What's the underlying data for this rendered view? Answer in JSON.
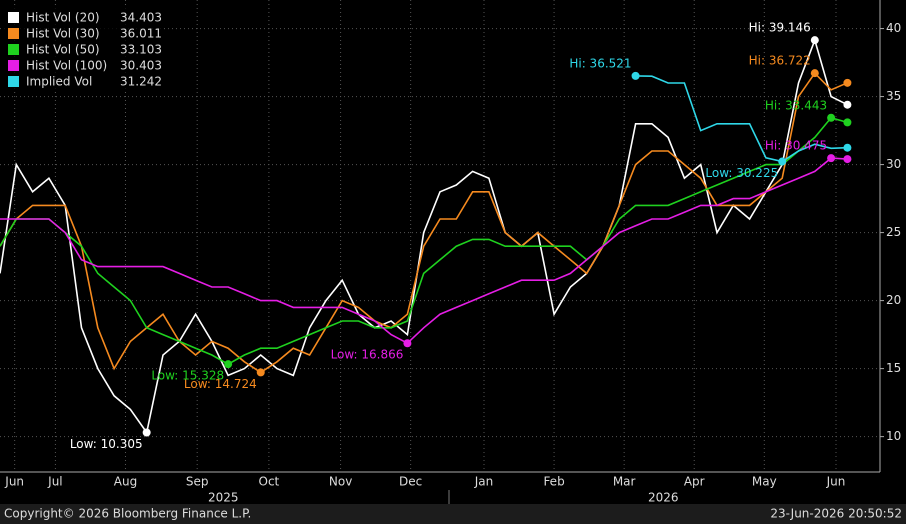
{
  "chart_data": {
    "type": "line",
    "x": [
      0,
      1,
      2,
      3,
      4,
      5,
      6,
      7,
      8,
      9,
      10,
      11,
      12,
      13,
      14,
      15,
      16,
      17,
      18,
      19,
      20,
      21,
      22,
      23,
      24,
      25,
      26,
      27,
      28,
      29,
      30,
      31,
      32,
      33,
      34,
      35,
      36,
      37,
      38,
      39,
      40,
      41,
      42,
      43,
      44,
      45,
      46,
      47,
      48,
      49,
      50,
      51,
      52
    ],
    "xlim": [
      0,
      54
    ],
    "xticks": [
      {
        "value": 0.9,
        "label": "Jun"
      },
      {
        "value": 3.4,
        "label": "Jul"
      },
      {
        "value": 7.7,
        "label": "Aug"
      },
      {
        "value": 12.1,
        "label": "Sep"
      },
      {
        "value": 16.5,
        "label": "Oct"
      },
      {
        "value": 20.9,
        "label": "Nov"
      },
      {
        "value": 25.2,
        "label": "Dec"
      },
      {
        "value": 29.7,
        "label": "Jan"
      },
      {
        "value": 34.0,
        "label": "Feb"
      },
      {
        "value": 38.3,
        "label": "Mar"
      },
      {
        "value": 42.6,
        "label": "Apr"
      },
      {
        "value": 46.9,
        "label": "May"
      },
      {
        "value": 51.3,
        "label": "Jun"
      }
    ],
    "year_labels": [
      {
        "value": 13.7,
        "label": "2025"
      },
      {
        "value": 40.7,
        "label": "2026"
      }
    ],
    "ylim": [
      7.4,
      42.1
    ],
    "yticks": [
      10,
      15,
      20,
      25,
      30,
      35,
      40
    ],
    "grid": true,
    "series": [
      {
        "name": "Hist Vol (20)",
        "color": "#ffffff",
        "values": [
          22,
          30,
          28,
          29,
          27,
          18,
          15,
          13,
          12,
          10.305,
          16,
          17,
          19,
          17,
          14.5,
          15,
          16,
          15,
          14.5,
          18,
          20,
          21.5,
          19,
          18,
          18.5,
          17.5,
          25,
          28,
          28.5,
          29.5,
          29,
          25,
          24,
          25,
          19,
          21,
          22,
          24,
          27,
          33,
          33,
          32,
          29,
          30,
          25,
          27,
          26,
          28,
          30,
          36,
          39.146,
          35,
          34.403
        ],
        "annotations": [
          {
            "index": 9,
            "kind": "low",
            "label": "Low: 10.305"
          },
          {
            "index": 50,
            "kind": "hi",
            "label": "Hi: 39.146"
          }
        ]
      },
      {
        "name": "Hist Vol (30)",
        "color": "#f58a1f",
        "values": [
          24,
          26,
          27,
          27,
          27,
          24,
          18,
          15,
          17,
          18,
          19,
          17,
          16,
          17,
          16.5,
          15.5,
          14.724,
          15.5,
          16.5,
          16,
          18,
          20,
          19.5,
          18.5,
          18,
          19,
          24,
          26,
          26,
          28,
          28,
          25,
          24,
          25,
          24,
          23,
          22,
          24,
          27,
          30,
          31,
          31,
          30,
          29,
          27,
          27,
          27,
          28,
          29,
          35,
          36.722,
          35.5,
          36.011
        ],
        "annotations": [
          {
            "index": 16,
            "kind": "low",
            "label": "Low: 14.724"
          },
          {
            "index": 50,
            "kind": "hi",
            "label": "Hi: 36.722"
          }
        ]
      },
      {
        "name": "Hist Vol (50)",
        "color": "#1fd11f",
        "values": [
          24,
          26,
          26,
          26,
          25,
          24,
          22,
          21,
          20,
          18,
          17.5,
          17,
          16.5,
          16,
          15.328,
          16,
          16.5,
          16.5,
          17,
          17.5,
          18,
          18.5,
          18.5,
          18,
          18,
          18.5,
          22,
          23,
          24,
          24.5,
          24.5,
          24,
          24,
          24,
          24,
          24,
          23,
          24,
          26,
          27,
          27,
          27,
          27.5,
          28,
          28.5,
          29,
          29.5,
          30,
          30,
          31,
          32,
          33.443,
          33.103
        ],
        "annotations": [
          {
            "index": 14,
            "kind": "low",
            "label": "Low: 15.328"
          },
          {
            "index": 51,
            "kind": "hi",
            "label": "Hi: 33.443"
          }
        ]
      },
      {
        "name": "Hist Vol (100)",
        "color": "#e51ee5",
        "values": [
          26,
          26,
          26,
          26,
          25,
          23,
          22.5,
          22.5,
          22.5,
          22.5,
          22.5,
          22,
          21.5,
          21,
          21,
          20.5,
          20,
          20,
          19.5,
          19.5,
          19.5,
          19.5,
          19,
          18.5,
          17.5,
          16.866,
          18,
          19,
          19.5,
          20,
          20.5,
          21,
          21.5,
          21.5,
          21.5,
          22,
          23,
          24,
          25,
          25.5,
          26,
          26,
          26.5,
          27,
          27,
          27.5,
          27.5,
          28,
          28.5,
          29,
          29.5,
          30.475,
          30.403
        ],
        "annotations": [
          {
            "index": 25,
            "kind": "low",
            "label": "Low: 16.866"
          },
          {
            "index": 51,
            "kind": "hi",
            "label": "Hi: 30.475"
          }
        ]
      },
      {
        "name": "Implied Vol",
        "color": "#2fd7e8",
        "values": [
          null,
          null,
          null,
          null,
          null,
          null,
          null,
          null,
          null,
          null,
          null,
          null,
          null,
          null,
          null,
          null,
          null,
          null,
          null,
          null,
          null,
          null,
          null,
          null,
          null,
          null,
          null,
          null,
          null,
          null,
          null,
          null,
          null,
          null,
          null,
          null,
          null,
          null,
          null,
          36.521,
          36.5,
          36,
          36,
          32.5,
          33,
          33,
          33,
          30.5,
          30.225,
          31,
          31.5,
          31.2,
          31.242
        ],
        "annotations": [
          {
            "index": 39,
            "kind": "hi",
            "label": "Hi: 36.521"
          },
          {
            "index": 48,
            "kind": "low",
            "label": "Low: 30.225"
          }
        ]
      }
    ],
    "footer_left": "Copyright© 2026 Bloomberg Finance L.P.",
    "footer_right": "23-Jun-2026 20:50:52"
  }
}
